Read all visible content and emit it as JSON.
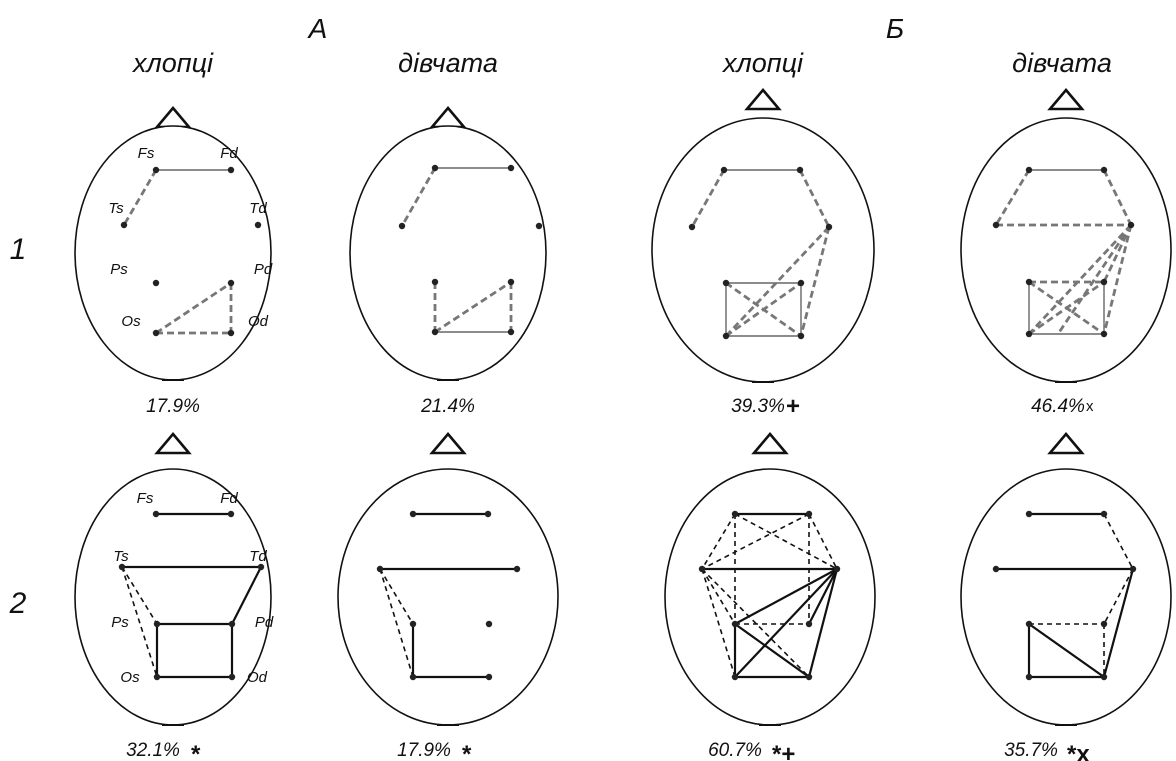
{
  "groups": [
    {
      "letter": "А",
      "columns": [
        "хлопці",
        "дівчата"
      ]
    },
    {
      "letter": "Б",
      "columns": [
        "хлопці",
        "дівчата"
      ]
    }
  ],
  "rows": [
    "1",
    "2"
  ],
  "electrode_labels": {
    "row1": [
      "Fs",
      "Fd",
      "Ts",
      "Td",
      "Ps",
      "Pd",
      "Os",
      "Od"
    ],
    "row2": [
      "Fs",
      "Fd",
      "Ts",
      "Td",
      "Ps",
      "Pd",
      "Os",
      "Od"
    ]
  },
  "panels": [
    {
      "id": "A-boys-1",
      "percent": "17.9%",
      "marks": ""
    },
    {
      "id": "A-girls-1",
      "percent": "21.4%",
      "marks": ""
    },
    {
      "id": "B-boys-1",
      "percent": "39.3%",
      "marks": "+"
    },
    {
      "id": "B-girls-1",
      "percent": "46.4%",
      "marks": "x"
    },
    {
      "id": "A-boys-2",
      "percent": "32.1%",
      "marks": "*"
    },
    {
      "id": "A-girls-2",
      "percent": "17.9%",
      "marks": "*"
    },
    {
      "id": "B-boys-2",
      "percent": "60.7%",
      "marks": "*+"
    },
    {
      "id": "B-girls-2",
      "percent": "35.7%",
      "marks": "*x"
    }
  ]
}
